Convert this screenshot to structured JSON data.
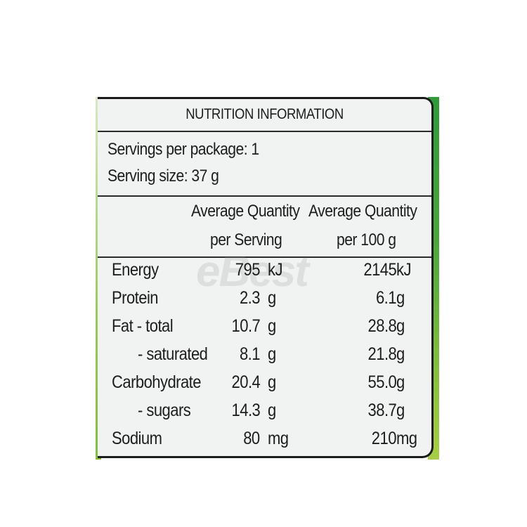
{
  "title": "NUTRITION INFORMATION",
  "servings": {
    "per_package": "Servings per package: 1",
    "serving_size": "Serving size: 37 g"
  },
  "headers": {
    "col1_line1": "Average Quantity",
    "col1_line2": "per Serving",
    "col2_line1": "Average Quantity",
    "col2_line2": "per 100 g"
  },
  "watermark": "eBest",
  "rows": [
    {
      "name": "Energy",
      "per_serving": "795",
      "per_serving_unit": "kJ",
      "per_100g": "2145",
      "per_100g_unit": "kJ"
    },
    {
      "name": "Protein",
      "per_serving": "2.3",
      "per_serving_unit": "g",
      "per_100g": "6.1",
      "per_100g_unit": "g"
    },
    {
      "name": "Fat - total",
      "per_serving": "10.7",
      "per_serving_unit": "g",
      "per_100g": "28.8",
      "per_100g_unit": "g"
    },
    {
      "name": "- saturated",
      "per_serving": "8.1",
      "per_serving_unit": "g",
      "per_100g": "21.8",
      "per_100g_unit": "g"
    },
    {
      "name": "Carbohydrate",
      "per_serving": "20.4",
      "per_serving_unit": "g",
      "per_100g": "55.0",
      "per_100g_unit": "g"
    },
    {
      "name": "- sugars",
      "per_serving": "14.3",
      "per_serving_unit": "g",
      "per_100g": "38.7",
      "per_100g_unit": "g"
    },
    {
      "name": "Sodium",
      "per_serving": "80",
      "per_serving_unit": "mg",
      "per_100g": "210",
      "per_100g_unit": "mg"
    }
  ]
}
